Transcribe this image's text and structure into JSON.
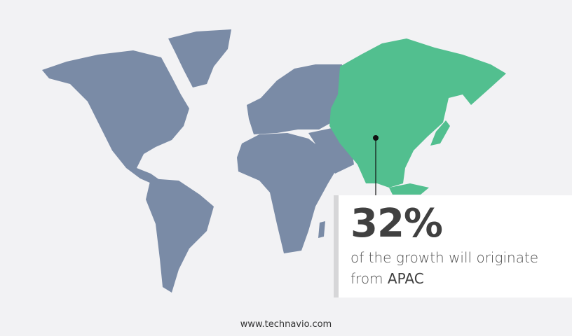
{
  "colors": {
    "background": "#f2f2f4",
    "land": "#7a8ba6",
    "highlight": "#52bf8f",
    "text": "#404040"
  },
  "highlight_region": "APAC",
  "callout": {
    "value": "32%",
    "text": "of the growth will originate",
    "prefix": "from",
    "region": "APAC"
  },
  "footer": {
    "url": "www.technavio.com"
  }
}
